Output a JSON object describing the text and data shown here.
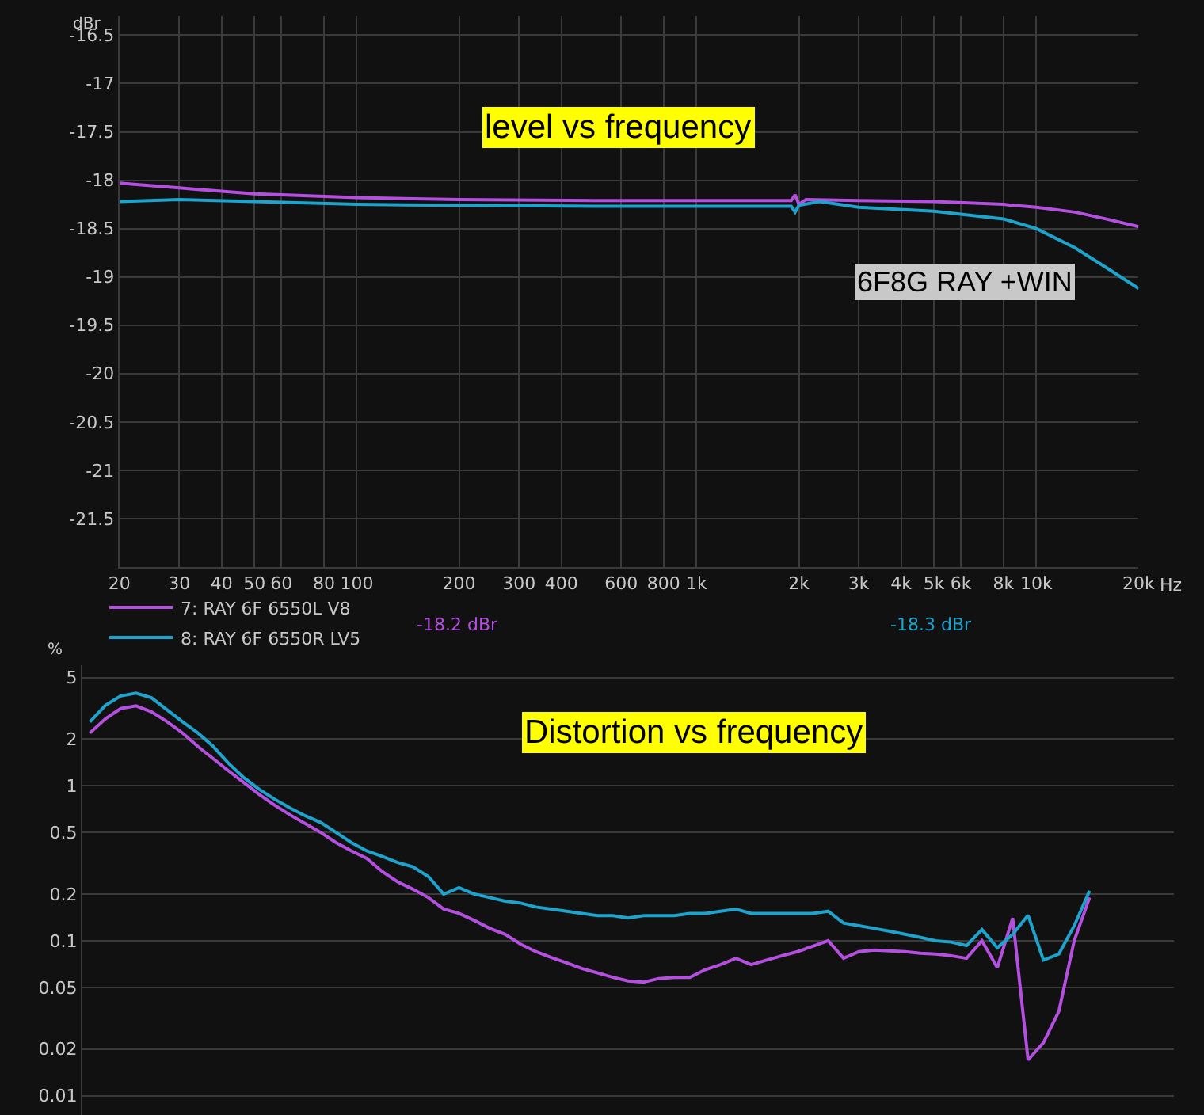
{
  "chart_data": [
    {
      "type": "line",
      "title": "level vs frequency",
      "ylabel": "dBr",
      "log": "x",
      "grid": true,
      "legend": "bottom",
      "marker": "none",
      "line_style": "solid",
      "xlim": [
        20,
        20000
      ],
      "xticks": [
        20,
        30,
        40,
        50,
        60,
        80,
        100,
        200,
        300,
        400,
        600,
        800,
        {
          "value": 1000,
          "label": "1k"
        },
        {
          "value": 2000,
          "label": "2k"
        },
        {
          "value": 3000,
          "label": "3k"
        },
        {
          "value": 4000,
          "label": "4k"
        },
        {
          "value": 5000,
          "label": "5k"
        },
        {
          "value": 6000,
          "label": "6k"
        },
        {
          "value": 8000,
          "label": "8k"
        },
        {
          "value": 10000,
          "label": "10k"
        },
        {
          "value": 20000,
          "label": "20k"
        }
      ],
      "xlabel": "Hz",
      "ylim": [
        -22,
        -16.3
      ],
      "yticks": [
        -16.5,
        -17,
        -17.5,
        -18,
        -18.5,
        -19,
        -19.5,
        -20,
        -20.5,
        -21,
        -21.5
      ],
      "annotations": [
        "6F8G RAY +WIN",
        "-18.2 dBr",
        "-18.3 dBr"
      ],
      "series": [
        {
          "name": "7: RAY 6F 6550L V8",
          "color": "#b44fe0",
          "x": [
            20,
            30,
            50,
            100,
            200,
            500,
            1000,
            1900,
            1950,
            2000,
            2100,
            3000,
            5000,
            8000,
            10000,
            13000,
            16000,
            20000
          ],
          "values": [
            -18.03,
            -18.08,
            -18.14,
            -18.18,
            -18.2,
            -18.21,
            -18.21,
            -18.21,
            -18.15,
            -18.25,
            -18.2,
            -18.21,
            -18.22,
            -18.25,
            -18.28,
            -18.33,
            -18.4,
            -18.48
          ]
        },
        {
          "name": "8: RAY 6F 6550R LV5",
          "color": "#1ea3cc",
          "x": [
            20,
            30,
            50,
            100,
            200,
            500,
            1000,
            1900,
            1950,
            2000,
            2300,
            3000,
            5000,
            8000,
            10000,
            13000,
            16000,
            20000
          ],
          "values": [
            -18.22,
            -18.2,
            -18.22,
            -18.25,
            -18.26,
            -18.27,
            -18.27,
            -18.27,
            -18.33,
            -18.26,
            -18.22,
            -18.28,
            -18.32,
            -18.4,
            -18.5,
            -18.7,
            -18.9,
            -19.12
          ]
        }
      ]
    },
    {
      "type": "line",
      "title": "Distortion vs frequency",
      "ylabel": "%",
      "log": "y",
      "grid": "y",
      "legend": false,
      "marker": "none",
      "line_style": "solid",
      "categories": [
        null,
        null,
        null,
        null,
        null,
        null,
        null,
        null,
        null,
        null,
        null,
        null,
        null,
        null,
        null,
        null,
        null,
        null,
        null,
        null,
        null,
        null,
        null,
        null,
        null,
        null,
        null,
        null,
        null,
        null,
        null,
        null,
        null,
        null,
        null,
        null,
        null,
        null,
        null,
        null,
        null,
        null,
        null,
        null,
        null,
        null,
        null,
        null,
        null,
        null,
        null,
        null,
        null,
        null,
        null,
        null,
        null,
        null,
        null,
        null,
        null,
        null,
        null,
        null,
        null,
        null,
        null,
        null,
        null,
        null,
        null
      ],
      "ylim": [
        0.0075,
        6
      ],
      "yticks": [
        0.01,
        0.02,
        0.05,
        0.1,
        0.2,
        0.5,
        1,
        2,
        5
      ],
      "series": [
        {
          "color": "#b44fe0",
          "values": [
            2.19,
            2.7,
            3.15,
            3.28,
            3.0,
            2.6,
            2.2,
            1.8,
            1.5,
            1.25,
            1.05,
            0.88,
            0.75,
            0.65,
            0.57,
            0.5,
            0.43,
            0.38,
            0.34,
            0.28,
            0.24,
            0.215,
            0.19,
            0.16,
            0.15,
            0.135,
            0.12,
            0.11,
            0.095,
            0.085,
            0.078,
            0.072,
            0.066,
            0.062,
            0.058,
            0.055,
            0.054,
            0.057,
            0.058,
            0.058,
            0.065,
            0.07,
            0.077,
            0.07,
            0.075,
            0.08,
            0.085,
            0.092,
            0.1,
            0.077,
            0.085,
            0.087,
            0.086,
            0.085,
            0.083,
            0.082,
            0.08,
            0.077,
            0.1,
            0.067,
            0.14,
            0.017,
            0.022,
            0.035,
            0.1,
            0.19,
            null,
            null,
            null,
            null,
            null
          ]
        },
        {
          "color": "#1ea3cc",
          "values": [
            2.58,
            3.3,
            3.8,
            3.96,
            3.7,
            3.1,
            2.6,
            2.2,
            1.8,
            1.4,
            1.13,
            0.95,
            0.82,
            0.72,
            0.64,
            0.58,
            0.5,
            0.43,
            0.38,
            0.35,
            0.32,
            0.3,
            0.26,
            0.2,
            0.22,
            0.2,
            0.19,
            0.18,
            0.175,
            0.165,
            0.16,
            0.155,
            0.15,
            0.145,
            0.145,
            0.14,
            0.145,
            0.145,
            0.145,
            0.15,
            0.15,
            0.155,
            0.16,
            0.15,
            0.15,
            0.15,
            0.15,
            0.15,
            0.155,
            0.13,
            0.125,
            0.12,
            0.115,
            0.11,
            0.105,
            0.1,
            0.098,
            0.093,
            0.118,
            0.09,
            0.11,
            0.146,
            0.075,
            0.082,
            0.125,
            0.21,
            null,
            null,
            null,
            null,
            null
          ]
        }
      ]
    }
  ]
}
